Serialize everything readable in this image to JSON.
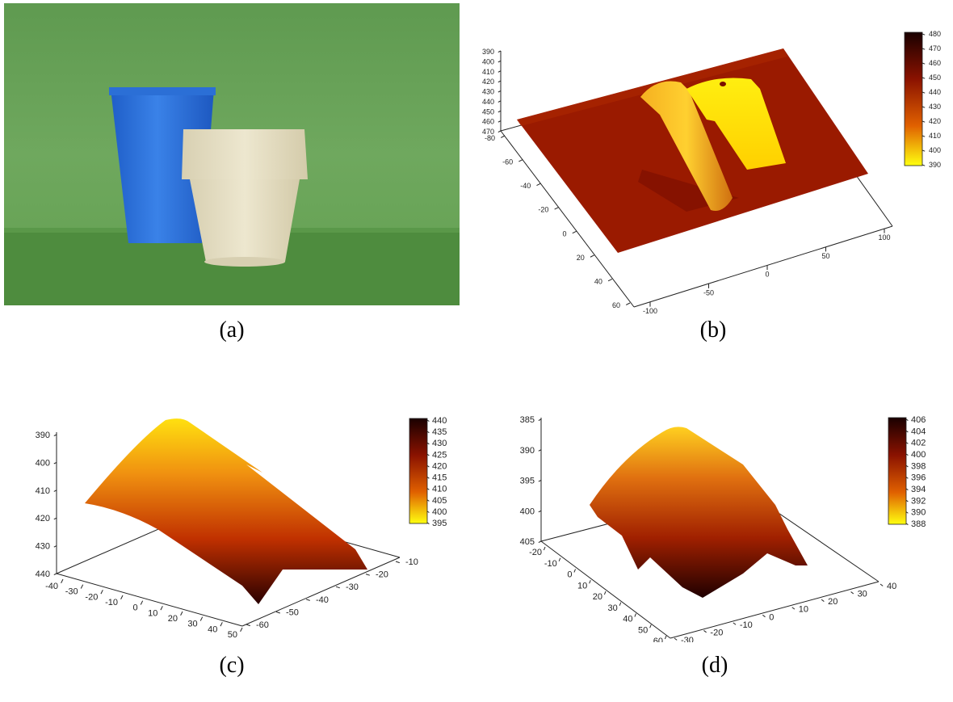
{
  "captions": {
    "a": "(a)",
    "b": "(b)",
    "c": "(c)",
    "d": "(d)"
  },
  "photo": {
    "description_colors": {
      "background": "#6aa25a",
      "cup": "#2a6ed8",
      "pot": "#e6dfc4"
    }
  },
  "chart_data": [
    {
      "type": "heatmap",
      "panel": "b",
      "colorbar": {
        "min": 390,
        "max": 480,
        "ticks": [
          "480",
          "470",
          "460",
          "450",
          "440",
          "430",
          "420",
          "410",
          "400",
          "390"
        ]
      },
      "z_ticks": [
        "390",
        "400",
        "410",
        "420",
        "430",
        "440",
        "450",
        "460",
        "470"
      ],
      "x_ticks": [
        "-80",
        "-60",
        "-40",
        "-20",
        "0",
        "20",
        "40",
        "60"
      ],
      "y_ticks": [
        "-100",
        "-50",
        "0",
        "50",
        "100"
      ]
    },
    {
      "type": "heatmap",
      "panel": "c",
      "colorbar": {
        "min": 395,
        "max": 440,
        "ticks": [
          "440",
          "435",
          "430",
          "425",
          "420",
          "415",
          "410",
          "405",
          "400",
          "395"
        ]
      },
      "z_ticks": [
        "390",
        "400",
        "410",
        "420",
        "430",
        "440"
      ],
      "x_ticks": [
        "-40",
        "-30",
        "-20",
        "-10",
        "0",
        "10",
        "20",
        "30",
        "40",
        "50"
      ],
      "y_ticks": [
        "-60",
        "-50",
        "-40",
        "-30",
        "-20",
        "-10"
      ]
    },
    {
      "type": "heatmap",
      "panel": "d",
      "colorbar": {
        "min": 388,
        "max": 406,
        "ticks": [
          "406",
          "404",
          "402",
          "400",
          "398",
          "396",
          "394",
          "392",
          "390",
          "388"
        ]
      },
      "z_ticks": [
        "385",
        "390",
        "395",
        "400",
        "405"
      ],
      "x_ticks": [
        "-20",
        "-10",
        "0",
        "10",
        "20",
        "30",
        "40",
        "50",
        "60"
      ],
      "y_ticks": [
        "-30",
        "-20",
        "-10",
        "0",
        "10",
        "20",
        "30",
        "40"
      ]
    }
  ]
}
